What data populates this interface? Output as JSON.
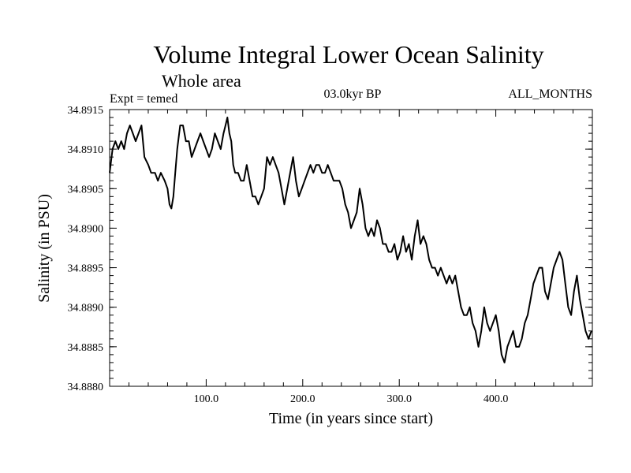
{
  "chart_data": {
    "type": "line",
    "title": "Volume Integral Lower Ocean Salinity",
    "subtitle": "Whole area",
    "period_label": "03.0kyr BP",
    "months_label": "ALL_MONTHS",
    "expt_label": "Expt = temed",
    "xlabel": "Time (in years since start)",
    "ylabel": "Salinity (in PSU)",
    "xlim": [
      0,
      500
    ],
    "ylim": [
      34.888,
      34.8915
    ],
    "x_ticks": [
      100,
      200,
      300,
      400
    ],
    "x_tick_labels": [
      "100.0",
      "200.0",
      "300.0",
      "400.0"
    ],
    "y_ticks": [
      34.888,
      34.8885,
      34.889,
      34.8895,
      34.89,
      34.8905,
      34.891,
      34.8915
    ],
    "y_tick_labels": [
      "34.8880",
      "34.8885",
      "34.8890",
      "34.8895",
      "34.8900",
      "34.8905",
      "34.8910",
      "34.8915"
    ],
    "grid": false,
    "series": [
      {
        "name": "Salinity",
        "color": "#000000",
        "x": [
          0,
          3,
          6,
          9,
          12,
          15,
          18,
          21,
          24,
          27,
          30,
          33,
          36,
          40,
          43,
          47,
          50,
          53,
          57,
          60,
          62,
          64,
          66,
          68,
          70,
          73,
          76,
          79,
          82,
          85,
          88,
          91,
          94,
          97,
          100,
          103,
          106,
          109,
          112,
          115,
          118,
          120,
          122,
          124,
          126,
          128,
          130,
          133,
          136,
          139,
          142,
          145,
          148,
          151,
          154,
          157,
          160,
          163,
          166,
          169,
          172,
          175,
          178,
          181,
          184,
          187,
          190,
          193,
          196,
          199,
          202,
          205,
          208,
          211,
          214,
          217,
          220,
          223,
          226,
          229,
          232,
          235,
          238,
          241,
          244,
          247,
          250,
          253,
          256,
          259,
          262,
          265,
          268,
          271,
          274,
          277,
          280,
          283,
          286,
          289,
          292,
          295,
          298,
          301,
          304,
          307,
          310,
          313,
          316,
          319,
          322,
          325,
          328,
          331,
          334,
          337,
          340,
          343,
          346,
          349,
          352,
          355,
          358,
          361,
          364,
          367,
          370,
          373,
          376,
          379,
          382,
          385,
          388,
          391,
          394,
          397,
          400,
          403,
          406,
          409,
          412,
          415,
          418,
          421,
          424,
          427,
          430,
          433,
          436,
          439,
          442,
          445,
          448,
          451,
          454,
          457,
          460,
          463,
          466,
          469,
          472,
          475,
          478,
          481,
          484,
          487,
          490,
          493,
          496,
          499
        ],
        "values": [
          34.8907,
          34.891,
          34.8911,
          34.891,
          34.8911,
          34.891,
          34.8912,
          34.8913,
          34.8912,
          34.8911,
          34.8912,
          34.8913,
          34.8909,
          34.8908,
          34.8907,
          34.8907,
          34.8906,
          34.8907,
          34.8906,
          34.8905,
          34.8903,
          34.89025,
          34.8904,
          34.8907,
          34.891,
          34.8913,
          34.8913,
          34.8911,
          34.8911,
          34.8909,
          34.891,
          34.8911,
          34.8912,
          34.8911,
          34.891,
          34.8909,
          34.891,
          34.8912,
          34.8911,
          34.891,
          34.8912,
          34.8913,
          34.8914,
          34.8912,
          34.8911,
          34.8908,
          34.8907,
          34.8907,
          34.8906,
          34.8906,
          34.8908,
          34.8906,
          34.8904,
          34.8904,
          34.8903,
          34.8904,
          34.8905,
          34.8909,
          34.8908,
          34.8909,
          34.8908,
          34.8907,
          34.8905,
          34.8903,
          34.8905,
          34.8907,
          34.8909,
          34.8906,
          34.8904,
          34.8905,
          34.8906,
          34.8907,
          34.8908,
          34.8907,
          34.8908,
          34.8908,
          34.8907,
          34.8907,
          34.8908,
          34.8907,
          34.8906,
          34.8906,
          34.8906,
          34.8905,
          34.8903,
          34.8902,
          34.89,
          34.8901,
          34.8902,
          34.8905,
          34.8903,
          34.89,
          34.8899,
          34.89,
          34.8899,
          34.8901,
          34.89,
          34.8898,
          34.8898,
          34.8897,
          34.8897,
          34.8898,
          34.8896,
          34.8897,
          34.8899,
          34.8897,
          34.8898,
          34.8896,
          34.8899,
          34.8901,
          34.8898,
          34.8899,
          34.8898,
          34.8896,
          34.8895,
          34.8895,
          34.8894,
          34.8895,
          34.8894,
          34.8893,
          34.8894,
          34.8893,
          34.8894,
          34.8892,
          34.889,
          34.8889,
          34.8889,
          34.889,
          34.8888,
          34.8887,
          34.8885,
          34.8887,
          34.889,
          34.8888,
          34.8887,
          34.8888,
          34.8889,
          34.8887,
          34.8884,
          34.8883,
          34.8885,
          34.8886,
          34.8887,
          34.8885,
          34.8885,
          34.8886,
          34.8888,
          34.8889,
          34.8891,
          34.8893,
          34.8894,
          34.8895,
          34.8895,
          34.8892,
          34.8891,
          34.8893,
          34.8895,
          34.8896,
          34.8897,
          34.8896,
          34.8893,
          34.889,
          34.8889,
          34.8892,
          34.8894,
          34.8891,
          34.8889,
          34.8887,
          34.8886,
          34.8887
        ]
      }
    ]
  }
}
